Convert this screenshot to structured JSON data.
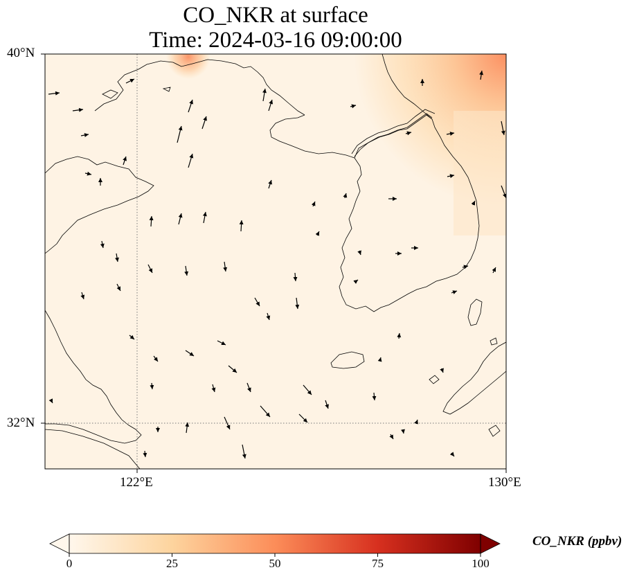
{
  "title_line1": "CO_NKR at surface",
  "title_line2": "Time: 2024-03-16 09:00:00",
  "axes": {
    "lat_ticks": [
      "40°N",
      "32°N"
    ],
    "lon_ticks": [
      "122°E",
      "130°E"
    ],
    "lon_range": [
      120,
      130
    ],
    "lat_range": [
      31,
      40
    ],
    "gridlines": "dotted"
  },
  "colorbar": {
    "label": "CO_NKR (ppbv)",
    "ticks": [
      "0",
      "25",
      "50",
      "75",
      "100"
    ],
    "range": [
      0,
      100
    ],
    "extend": "both",
    "colormap": "OrRd",
    "colors": [
      "#fff7ec",
      "#fdd49e",
      "#fc8d59",
      "#d7301f",
      "#7f0000"
    ]
  },
  "map": {
    "field": "CO_NKR",
    "level": "surface",
    "background_value_ppbv": 5,
    "wind_vectors": "black arrows",
    "coastlines": "black",
    "hotspots": [
      {
        "region": "northeast corner",
        "value_ppbv": 25
      },
      {
        "region": "north coast near 122.8E 40N",
        "value_ppbv": 20
      }
    ]
  }
}
